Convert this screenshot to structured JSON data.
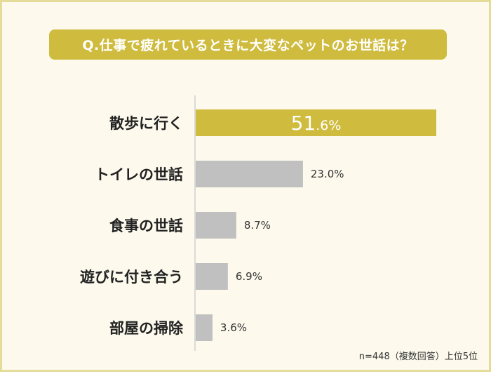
{
  "chart_data": {
    "type": "bar",
    "orientation": "horizontal",
    "title": "Q.仕事で疲れているときに大変なペットのお世話は？",
    "categories": [
      "散歩に行く",
      "トイレの世話",
      "食事の世話",
      "遊びに付き合う",
      "部屋の掃除"
    ],
    "values": [
      51.6,
      23.0,
      8.7,
      6.9,
      3.6
    ],
    "value_labels": [
      "51.6%",
      "23.0%",
      "8.7%",
      "6.9%",
      "3.6%"
    ],
    "highlight_value_label": {
      "main": "51",
      "rest": ".6%"
    },
    "xlim": [
      0,
      51.6
    ],
    "grid": false,
    "legend": "none",
    "footnote": "n=448（複数回答）上位5位"
  },
  "colors": {
    "highlight": "#cfbb3d",
    "bar": "#c0c0c0",
    "frame_bg": "#fdfaed",
    "frame_border": "#e4dc98",
    "axis": "#cfcfcf",
    "text": "#222222"
  }
}
